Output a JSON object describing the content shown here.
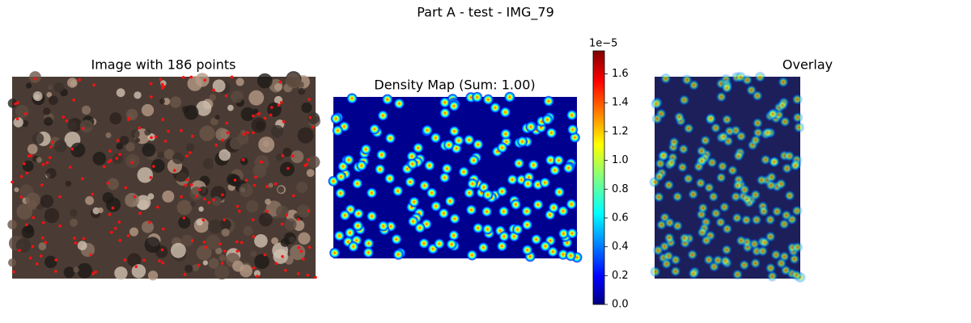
{
  "title": "Part A - test - IMG_79",
  "panels": [
    {
      "title": "Image with 186 points"
    },
    {
      "title": "Density Map (Sum: 1.00)"
    },
    {
      "title": "Overlay"
    }
  ],
  "colorbar": {
    "offset_label": "1e−5",
    "ylim": [
      0,
      1.76
    ],
    "yticks": [
      {
        "value": 0,
        "label": "0.0"
      },
      0.2,
      0.4,
      0.6,
      0.8,
      {
        "value": 1,
        "label": "1.0"
      },
      1.2,
      1.4,
      1.6
    ]
  }
}
